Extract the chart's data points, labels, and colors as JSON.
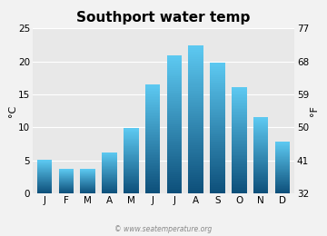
{
  "title": "Southport water temp",
  "months": [
    "J",
    "F",
    "M",
    "A",
    "M",
    "J",
    "J",
    "A",
    "S",
    "O",
    "N",
    "D"
  ],
  "values_c": [
    5.0,
    3.7,
    3.7,
    6.2,
    9.8,
    16.4,
    20.8,
    22.3,
    19.8,
    16.0,
    11.5,
    7.8
  ],
  "ylim_c": [
    0,
    25
  ],
  "yticks_c": [
    0,
    5,
    10,
    15,
    20,
    25
  ],
  "ylim_f": [
    32,
    77
  ],
  "yticks_f": [
    32,
    41,
    50,
    59,
    68,
    77
  ],
  "ylabel_left": "°C",
  "ylabel_right": "°F",
  "bar_color_top": "#5CC8F0",
  "bar_color_bottom": "#0D4F7A",
  "background_color": "#F2F2F2",
  "plot_bg_color": "#E8E8E8",
  "grid_color": "#FFFFFF",
  "title_fontsize": 11,
  "tick_fontsize": 7.5,
  "label_fontsize": 8,
  "watermark": "© www.seatemperature.org",
  "bar_width": 0.7
}
